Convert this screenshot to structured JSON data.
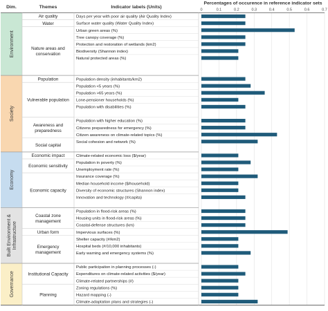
{
  "chart_data": {
    "type": "bar",
    "orientation": "horizontal",
    "headers": {
      "dim": "Dim.",
      "themes": "Themes",
      "indicators": "Indicator labels (Units)",
      "chart_title": "Percentages of occurence in reference indicator sets"
    },
    "xticks": [
      "0",
      "0.1",
      "0.2",
      "0.3",
      "0.4",
      "0.5",
      "0.6",
      "0.7"
    ],
    "xlim": [
      0,
      0.7
    ],
    "bar_color": "#1f5b7a",
    "dimensions": [
      {
        "name": "Environment",
        "color": "#c9e7d4",
        "rows": [
          0,
          8
        ]
      },
      {
        "name": "Society",
        "color": "#f9d7b0",
        "rows": [
          9,
          19
        ]
      },
      {
        "name": "Economy",
        "color": "#c6dcef",
        "rows": [
          20,
          27
        ]
      },
      {
        "name": "Built Environment & Infrastructure",
        "color": "#e3e3e3",
        "rows": [
          28,
          35
        ]
      },
      {
        "name": "Governance",
        "color": "#fbefc7",
        "rows": [
          36,
          41
        ]
      }
    ],
    "themes": [
      {
        "name": "Air quality",
        "rows": [
          0,
          0
        ]
      },
      {
        "name": "Water",
        "rows": [
          1,
          1
        ]
      },
      {
        "name": "Nature areas and conservation",
        "lines": [
          "Nature areas and",
          "conservation"
        ],
        "rows": [
          2,
          8
        ]
      },
      {
        "name": "Population",
        "rows": [
          9,
          9
        ]
      },
      {
        "name": "Vulnerable population",
        "rows": [
          10,
          14
        ]
      },
      {
        "name": "Awareness and preparedness",
        "lines": [
          "Awareness and",
          "preparedness"
        ],
        "rows": [
          15,
          17
        ]
      },
      {
        "name": "Social capital",
        "rows": [
          18,
          19
        ]
      },
      {
        "name": "Economic impact",
        "rows": [
          20,
          20
        ]
      },
      {
        "name": "Economic sensitivity",
        "rows": [
          21,
          22
        ]
      },
      {
        "name": "Economic capacity",
        "rows": [
          23,
          27
        ]
      },
      {
        "name": "Coastal zone management",
        "lines": [
          "Coastal zone",
          "management"
        ],
        "rows": [
          28,
          30
        ]
      },
      {
        "name": "Urban form",
        "rows": [
          31,
          31
        ]
      },
      {
        "name": "Emergency management",
        "lines": [
          "Emergency",
          "management"
        ],
        "rows": [
          32,
          35
        ]
      },
      {
        "name": "Institutional Capacity",
        "rows": [
          36,
          38
        ]
      },
      {
        "name": "Planning",
        "rows": [
          39,
          41
        ]
      }
    ],
    "indicators": [
      "Days per year with poor air quality (Air Quality Index)",
      "Surface water quality (Water Quality Index)",
      "Urban green areas (%)",
      "Tree canopy coverage (%)",
      "Protection and restoration of wetlands (km2)",
      "Biodiversity (Shannon index)",
      "Natural protected areas (%)",
      "Population density (inhabitants/km2)",
      "Population <5 years (%)",
      "Population >65 years (%)",
      "Lone-pensioner households (%)",
      "Population with disabilities (%)",
      "Population with higher education (%)",
      "Citizens preparedness for emergency (%)",
      "Citizen awareness on climate-related topics (%)",
      "Social cohesion and network (%)",
      "Climate-related economic loss ($/year)",
      "Population in poverty (%)",
      "Unemployment rate (%)",
      "Insurance coverage (%)",
      "Median household income ($/household)",
      "Diversity of economic structures (Shannon index)",
      "Innovation and technology (#/capita)",
      "Population in flood-risk areas (%)",
      "Housing units in flood-risk areas (%)",
      "Coastal-defense structures (km)",
      "Impervious surfaces (%)",
      "Shelter capacity (#/km2)",
      "Hospital beds (#/10,000 inhabitants)",
      "Early warning and emergency systems (%)",
      "Public participation in planning processes (-)",
      "Expenditures on climate-related activities ($/year)",
      "Climate-related partnerships (#)",
      "Zoning regulations (%)",
      "Hazard mapping (-)",
      "Climate-adaptation plans and strategies (-)"
    ],
    "indicator_rows": [
      0,
      1,
      2,
      3,
      4,
      5,
      6,
      9,
      10,
      11,
      12,
      13,
      15,
      16,
      17,
      18,
      20,
      21,
      22,
      23,
      24,
      25,
      26,
      28,
      29,
      30,
      31,
      32,
      33,
      34,
      36,
      37,
      38,
      39,
      40,
      41
    ],
    "values": [
      0.25,
      0.25,
      0.53,
      0.25,
      0.25,
      0.21,
      0.21,
      0.25,
      0.28,
      0.36,
      0.21,
      0.25,
      0.25,
      0.25,
      0.43,
      0.32,
      0.21,
      0.28,
      0.21,
      0.32,
      0.21,
      0.21,
      0.25,
      0.25,
      0.25,
      0.25,
      0.49,
      0.21,
      0.21,
      0.28,
      0.21,
      0.25,
      0.21,
      0.21,
      0.21,
      0.32
    ]
  }
}
